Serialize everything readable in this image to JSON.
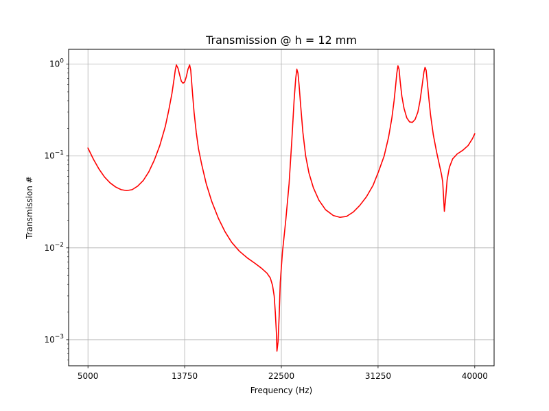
{
  "chart_data": {
    "type": "line",
    "title": "Transmission @ h = 12 mm",
    "xlabel": "Frequency (Hz)",
    "ylabel": "Transmission #",
    "xscale": "linear",
    "yscale": "log",
    "xlim": [
      3250,
      41750
    ],
    "ylim": [
      0.00052,
      1.45
    ],
    "grid": true,
    "x_ticks": [
      5000,
      13750,
      22500,
      31250,
      40000
    ],
    "x_tick_labels": [
      "5000",
      "13750",
      "22500",
      "31250",
      "40000"
    ],
    "y_ticks": [
      0.001,
      0.01,
      0.1,
      1
    ],
    "y_tick_labels": [
      {
        "base": "10",
        "exp": "−3"
      },
      {
        "base": "10",
        "exp": "−2"
      },
      {
        "base": "10",
        "exp": "−1"
      },
      {
        "base": "10",
        "exp": "0"
      }
    ],
    "series": [
      {
        "color": "#ff0000",
        "points": [
          [
            5000,
            0.122
          ],
          [
            5500,
            0.092
          ],
          [
            6000,
            0.072
          ],
          [
            6500,
            0.059
          ],
          [
            7000,
            0.051
          ],
          [
            7500,
            0.046
          ],
          [
            8000,
            0.043
          ],
          [
            8500,
            0.042
          ],
          [
            9000,
            0.043
          ],
          [
            9500,
            0.047
          ],
          [
            10000,
            0.054
          ],
          [
            10500,
            0.067
          ],
          [
            11000,
            0.09
          ],
          [
            11500,
            0.13
          ],
          [
            12000,
            0.21
          ],
          [
            12300,
            0.31
          ],
          [
            12600,
            0.48
          ],
          [
            12800,
            0.7
          ],
          [
            12900,
            0.86
          ],
          [
            13000,
            0.98
          ],
          [
            13150,
            0.9
          ],
          [
            13300,
            0.76
          ],
          [
            13450,
            0.65
          ],
          [
            13600,
            0.62
          ],
          [
            13750,
            0.64
          ],
          [
            13900,
            0.73
          ],
          [
            14050,
            0.88
          ],
          [
            14200,
            0.98
          ],
          [
            14300,
            0.86
          ],
          [
            14450,
            0.5
          ],
          [
            14600,
            0.3
          ],
          [
            14800,
            0.18
          ],
          [
            15000,
            0.12
          ],
          [
            15300,
            0.08
          ],
          [
            15700,
            0.05
          ],
          [
            16200,
            0.032
          ],
          [
            16800,
            0.021
          ],
          [
            17400,
            0.015
          ],
          [
            18000,
            0.0115
          ],
          [
            18700,
            0.0092
          ],
          [
            19400,
            0.0078
          ],
          [
            20100,
            0.0068
          ],
          [
            20700,
            0.006
          ],
          [
            21200,
            0.0053
          ],
          [
            21500,
            0.0047
          ],
          [
            21700,
            0.0039
          ],
          [
            21850,
            0.003
          ],
          [
            21950,
            0.002
          ],
          [
            22050,
            0.0012
          ],
          [
            22100,
            0.00075
          ],
          [
            22200,
            0.00095
          ],
          [
            22300,
            0.0018
          ],
          [
            22400,
            0.0042
          ],
          [
            22600,
            0.009
          ],
          [
            22900,
            0.02
          ],
          [
            23200,
            0.05
          ],
          [
            23450,
            0.15
          ],
          [
            23650,
            0.4
          ],
          [
            23800,
            0.7
          ],
          [
            23900,
            0.88
          ],
          [
            24000,
            0.8
          ],
          [
            24100,
            0.6
          ],
          [
            24250,
            0.35
          ],
          [
            24450,
            0.18
          ],
          [
            24700,
            0.1
          ],
          [
            25000,
            0.065
          ],
          [
            25400,
            0.045
          ],
          [
            25900,
            0.033
          ],
          [
            26500,
            0.026
          ],
          [
            27200,
            0.0225
          ],
          [
            27800,
            0.0215
          ],
          [
            28400,
            0.022
          ],
          [
            29000,
            0.0245
          ],
          [
            29600,
            0.029
          ],
          [
            30200,
            0.036
          ],
          [
            30800,
            0.048
          ],
          [
            31300,
            0.068
          ],
          [
            31800,
            0.1
          ],
          [
            32200,
            0.16
          ],
          [
            32500,
            0.26
          ],
          [
            32700,
            0.4
          ],
          [
            32850,
            0.6
          ],
          [
            32950,
            0.8
          ],
          [
            33050,
            0.96
          ],
          [
            33150,
            0.88
          ],
          [
            33250,
            0.65
          ],
          [
            33400,
            0.45
          ],
          [
            33600,
            0.33
          ],
          [
            33850,
            0.26
          ],
          [
            34100,
            0.235
          ],
          [
            34350,
            0.232
          ],
          [
            34600,
            0.25
          ],
          [
            34850,
            0.3
          ],
          [
            35050,
            0.4
          ],
          [
            35250,
            0.6
          ],
          [
            35400,
            0.82
          ],
          [
            35500,
            0.92
          ],
          [
            35600,
            0.86
          ],
          [
            35700,
            0.65
          ],
          [
            35850,
            0.42
          ],
          [
            36000,
            0.28
          ],
          [
            36250,
            0.17
          ],
          [
            36550,
            0.11
          ],
          [
            36800,
            0.08
          ],
          [
            37000,
            0.062
          ],
          [
            37100,
            0.052
          ],
          [
            37200,
            0.032
          ],
          [
            37250,
            0.025
          ],
          [
            37350,
            0.033
          ],
          [
            37500,
            0.055
          ],
          [
            37700,
            0.075
          ],
          [
            38000,
            0.093
          ],
          [
            38400,
            0.105
          ],
          [
            38900,
            0.115
          ],
          [
            39400,
            0.13
          ],
          [
            39800,
            0.155
          ],
          [
            40000,
            0.175
          ]
        ]
      }
    ]
  }
}
